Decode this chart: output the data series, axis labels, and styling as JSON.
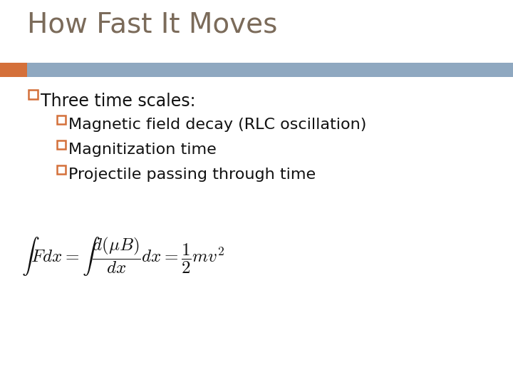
{
  "title": "How Fast It Moves",
  "title_color": "#7B6B5A",
  "title_fontsize": 28,
  "background_color": "#FFFFFF",
  "header_bar_color": "#8FA8C0",
  "header_bar_orange": "#D4703A",
  "bullet1": "Three time scales:",
  "bullet2": "Magnetic field decay (RLC oscillation)",
  "bullet3": "Magnitization time",
  "bullet4": "Projectile passing through time",
  "bullet_color": "#111111",
  "bullet_fontsize": 17,
  "sub_bullet_fontsize": 16,
  "box_color": "#D4703A",
  "eq_fontsize": 16,
  "eq_color": "#111111"
}
